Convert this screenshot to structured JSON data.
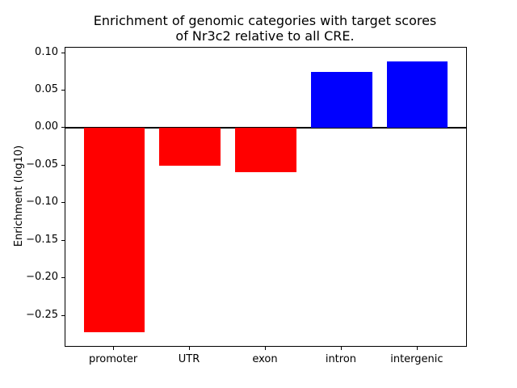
{
  "figure": {
    "title_line1": "Enrichment of genomic categories with target scores",
    "title_line2": "of Nr3c2 relative to all CRE.",
    "ylabel": "Enrichment (log10)",
    "background_color": "#ffffff",
    "axis_color": "#000000"
  },
  "chart_data": {
    "type": "bar",
    "title": "Enrichment of genomic categories with target scores of Nr3c2 relative to all CRE.",
    "xlabel": "",
    "ylabel": "Enrichment (log10)",
    "categories": [
      "promoter",
      "UTR",
      "exon",
      "intron",
      "intergenic"
    ],
    "values": [
      -0.272,
      -0.05,
      -0.059,
      0.075,
      0.089
    ],
    "positive_color": "#0000ff",
    "negative_color": "#ff0000",
    "bar_colors": [
      "#ff0000",
      "#ff0000",
      "#ff0000",
      "#0000ff",
      "#0000ff"
    ],
    "yticks": [
      0.1,
      0.05,
      0.0,
      -0.05,
      -0.1,
      -0.15,
      -0.2,
      -0.25
    ],
    "ytick_labels": [
      "0.10",
      "0.05",
      "0.00",
      "−0.05",
      "−0.10",
      "−0.15",
      "−0.20",
      "−0.25"
    ],
    "ylim": [
      -0.2901,
      0.1071
    ],
    "xlim": [
      -0.64,
      4.64
    ],
    "bar_width_fraction": 0.8,
    "zero_line": true,
    "grid": false,
    "legend": null
  }
}
